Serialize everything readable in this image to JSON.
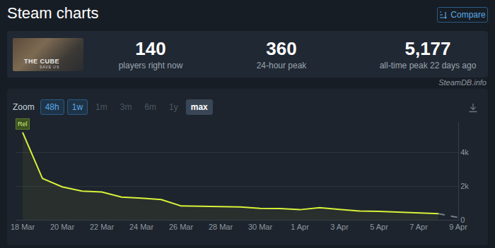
{
  "header": {
    "title": "Steam charts",
    "button": "Compare",
    "image_text": [
      "THE CUBE",
      "SAVE US"
    ],
    "stats": [
      {
        "value": "140",
        "label": "players right now"
      },
      {
        "value": "360",
        "label": "24-hour peak"
      },
      {
        "value": "5,177",
        "label": "all-time peak 22 days ago"
      }
    ],
    "source": "SteamDB.info",
    "zoom": {
      "label": "Zoom",
      "options": [
        "48h",
        "1w",
        "1m",
        "3m",
        "6m",
        "1y",
        "max"
      ],
      "enabled": [
        "48h",
        "1w"
      ],
      "selected": "max"
    }
  },
  "chart_data": {
    "type": "line",
    "categories": [
      "18 Mar",
      null,
      "20 Mar",
      null,
      "22 Mar",
      null,
      "24 Mar",
      null,
      "26 Mar",
      null,
      "28 Mar",
      null,
      "30 Mar",
      null,
      "1 Apr",
      null,
      "3 Apr",
      null,
      "5 Apr",
      null,
      "7 Apr",
      null,
      "9 Apr"
    ],
    "series": [
      {
        "color": "#d9f23a",
        "line_style": "solid",
        "values": [
          5177,
          2450,
          1950,
          1700,
          1650,
          1350,
          1280,
          1200,
          820,
          800,
          780,
          760,
          680,
          670,
          600,
          720,
          620,
          520,
          500,
          450,
          400,
          360,
          null
        ]
      },
      {
        "color": "#7a828c",
        "line_style": "dashed",
        "values": [
          null,
          null,
          null,
          null,
          null,
          null,
          null,
          null,
          null,
          null,
          null,
          null,
          null,
          null,
          null,
          null,
          null,
          null,
          null,
          null,
          null,
          360,
          140
        ]
      }
    ],
    "ylim": [
      0,
      5800
    ],
    "yticks": [
      0,
      {
        "value": 2000,
        "label": "2k"
      },
      {
        "value": 4000,
        "label": "4k"
      }
    ],
    "grid": true,
    "annotations": [
      {
        "text": "Rel",
        "category": "18 Mar"
      }
    ]
  }
}
